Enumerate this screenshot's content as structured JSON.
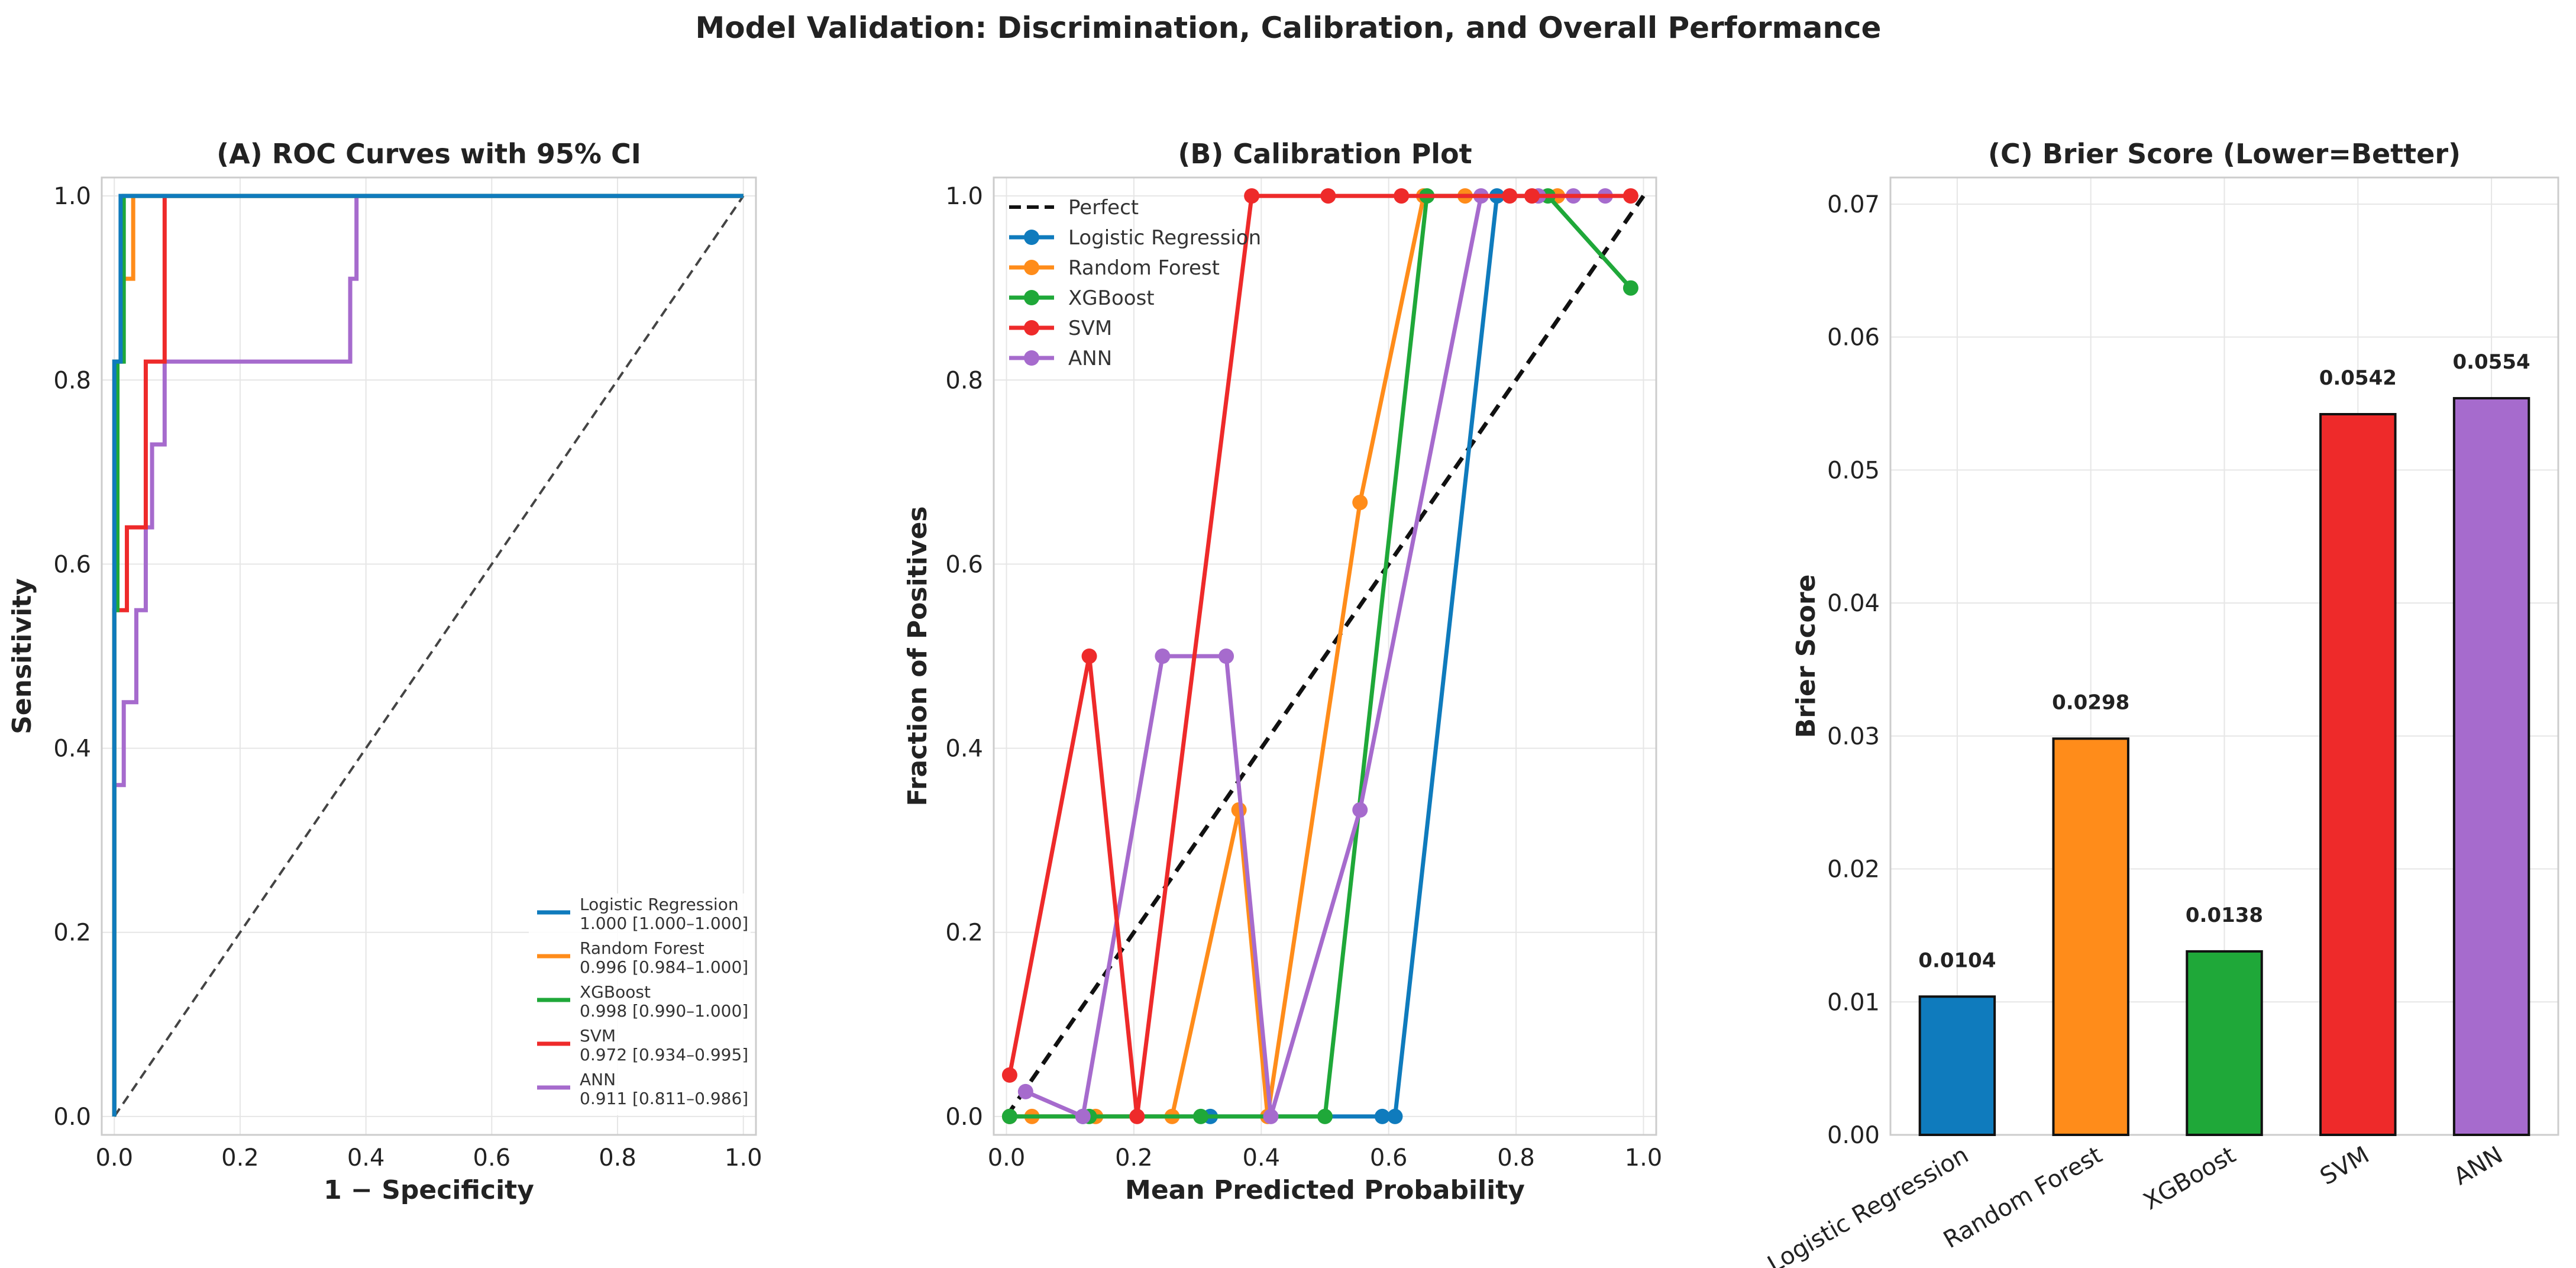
{
  "figure": {
    "title": "Model Validation: Discrimination, Calibration, and Overall Performance"
  },
  "colors": {
    "Logistic Regression": "#0f7bbd",
    "Random Forest": "#ff8c1a",
    "XGBoost": "#1fa839",
    "SVM": "#ee2a2a",
    "ANN": "#a66bcd"
  },
  "chart_data": [
    {
      "type": "line",
      "title": "(A) ROC Curves with 95% CI",
      "xlabel": "1 − Specificity",
      "ylabel": "Sensitivity",
      "xlim": [
        0,
        1
      ],
      "ylim": [
        0,
        1
      ],
      "xticks": [
        "0.0",
        "0.2",
        "0.4",
        "0.6",
        "0.8",
        "1.0"
      ],
      "yticks": [
        "0.0",
        "0.2",
        "0.4",
        "0.6",
        "0.8",
        "1.0"
      ],
      "grid": true,
      "legend_position": "lower-right",
      "reference_line": "diagonal-dashed",
      "series": [
        {
          "name": "Logistic Regression",
          "auc_label": "1.000 [1.000–1.000]",
          "x": [
            0,
            0,
            0.01,
            0.01,
            1
          ],
          "y": [
            0,
            0.82,
            0.82,
            1.0,
            1.0
          ]
        },
        {
          "name": "Random Forest",
          "auc_label": "0.996 [0.984–1.000]",
          "x": [
            0,
            0,
            0.012,
            0.012,
            0.03,
            0.03,
            1
          ],
          "y": [
            0,
            0.82,
            0.82,
            0.91,
            0.91,
            1.0,
            1.0
          ]
        },
        {
          "name": "XGBoost",
          "auc_label": "0.998 [0.990–1.000]",
          "x": [
            0,
            0,
            0.005,
            0.005,
            0.015,
            0.015,
            1
          ],
          "y": [
            0,
            0.55,
            0.55,
            0.82,
            0.82,
            1.0,
            1.0
          ]
        },
        {
          "name": "SVM",
          "auc_label": "0.972 [0.934–0.995]",
          "x": [
            0,
            0,
            0.02,
            0.02,
            0.05,
            0.05,
            0.08,
            0.08,
            1
          ],
          "y": [
            0,
            0.55,
            0.55,
            0.64,
            0.64,
            0.82,
            0.82,
            1.0,
            1.0
          ]
        },
        {
          "name": "ANN",
          "auc_label": "0.911 [0.811–0.986]",
          "x": [
            0,
            0,
            0.015,
            0.015,
            0.035,
            0.035,
            0.05,
            0.05,
            0.06,
            0.06,
            0.08,
            0.08,
            0.375,
            0.375,
            0.385,
            0.385,
            1
          ],
          "y": [
            0,
            0.36,
            0.36,
            0.45,
            0.45,
            0.55,
            0.55,
            0.64,
            0.64,
            0.73,
            0.73,
            0.82,
            0.82,
            0.91,
            0.91,
            1.0,
            1.0
          ]
        }
      ]
    },
    {
      "type": "line",
      "title": "(B) Calibration Plot",
      "xlabel": "Mean Predicted Probability",
      "ylabel": "Fraction of Positives",
      "xlim": [
        0,
        1
      ],
      "ylim": [
        0,
        1
      ],
      "xticks": [
        "0.0",
        "0.2",
        "0.4",
        "0.6",
        "0.8",
        "1.0"
      ],
      "yticks": [
        "0.0",
        "0.2",
        "0.4",
        "0.6",
        "0.8",
        "1.0"
      ],
      "grid": true,
      "legend_position": "top-left",
      "reference_label": "Perfect",
      "series": [
        {
          "name": "Logistic Regression",
          "x": [
            0.005,
            0.12,
            0.32,
            0.59,
            0.61,
            0.77
          ],
          "y": [
            0,
            0,
            0,
            0,
            0,
            1.0
          ]
        },
        {
          "name": "Random Forest",
          "x": [
            0.005,
            0.04,
            0.14,
            0.26,
            0.365,
            0.41,
            0.555,
            0.655,
            0.72,
            0.865
          ],
          "y": [
            0,
            0,
            0,
            0,
            0.333,
            0,
            0.667,
            1.0,
            1.0,
            1.0
          ]
        },
        {
          "name": "XGBoost",
          "x": [
            0.005,
            0.13,
            0.305,
            0.5,
            0.66,
            0.85,
            0.98
          ],
          "y": [
            0,
            0,
            0,
            0,
            1.0,
            1.0,
            0.9
          ]
        },
        {
          "name": "SVM",
          "x": [
            0.005,
            0.13,
            0.205,
            0.385,
            0.505,
            0.62,
            0.79,
            0.825,
            0.98
          ],
          "y": [
            0.045,
            0.5,
            0,
            1.0,
            1.0,
            1.0,
            1.0,
            1.0,
            1.0
          ]
        },
        {
          "name": "ANN",
          "x": [
            0.03,
            0.12,
            0.245,
            0.345,
            0.415,
            0.555,
            0.745,
            0.835,
            0.89,
            0.94
          ],
          "y": [
            0.027,
            0,
            0.5,
            0.5,
            0,
            0.333,
            1.0,
            1.0,
            1.0,
            1.0
          ]
        }
      ]
    },
    {
      "type": "bar",
      "title": "(C) Brier Score (Lower=Better)",
      "xlabel": "",
      "ylabel": "Brier Score",
      "ylim": [
        0,
        0.072
      ],
      "yticks": [
        "0.00",
        "0.01",
        "0.02",
        "0.03",
        "0.04",
        "0.05",
        "0.06",
        "0.07"
      ],
      "grid": true,
      "categories": [
        "Logistic Regression",
        "Random Forest",
        "XGBoost",
        "SVM",
        "ANN"
      ],
      "values": [
        0.0104,
        0.0298,
        0.0138,
        0.0542,
        0.0554
      ],
      "value_labels": [
        "0.0104",
        "0.0298",
        "0.0138",
        "0.0542",
        "0.0554"
      ]
    }
  ]
}
